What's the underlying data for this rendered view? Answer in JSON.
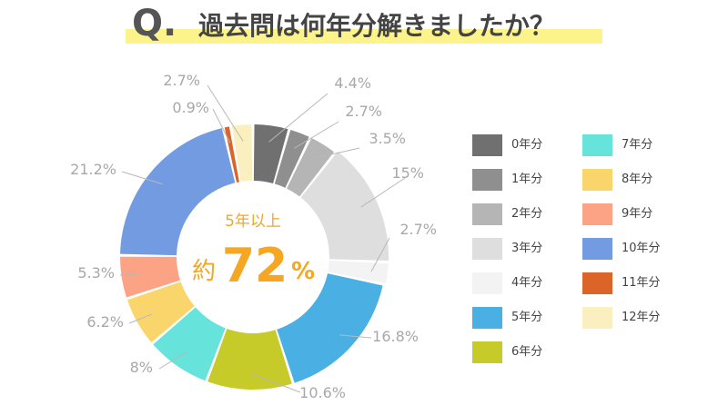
{
  "title": {
    "q_mark": "Q.",
    "text": "過去問は何年分解きましたか？"
  },
  "center": {
    "subtitle": "5年以上",
    "prefix": "約",
    "value": "72",
    "unit": "%"
  },
  "colors": {
    "highlight": "#fcf38a",
    "center_text": "#f5a623",
    "label_text": "#a8a8a8",
    "leader_line": "#b8b8b8"
  },
  "chart_data": {
    "type": "pie",
    "subtype": "donut",
    "unit": "%",
    "series": [
      {
        "name": "0年分",
        "value": 4.4,
        "label": "4.4%",
        "color": "#707070"
      },
      {
        "name": "1年分",
        "value": 2.7,
        "label": "2.7%",
        "color": "#8f8f8f"
      },
      {
        "name": "2年分",
        "value": 3.5,
        "label": "3.5%",
        "color": "#b5b5b5"
      },
      {
        "name": "3年分",
        "value": 15,
        "label": "15%",
        "color": "#dedede"
      },
      {
        "name": "4年分",
        "value": 2.7,
        "label": "2.7%",
        "color": "#f3f3f3"
      },
      {
        "name": "5年分",
        "value": 16.8,
        "label": "16.8%",
        "color": "#4ab0e4"
      },
      {
        "name": "6年分",
        "value": 10.6,
        "label": "10.6%",
        "color": "#c6cb2a"
      },
      {
        "name": "7年分",
        "value": 8,
        "label": "8%",
        "color": "#66e3da"
      },
      {
        "name": "8年分",
        "value": 6.2,
        "label": "6.2%",
        "color": "#fad56c"
      },
      {
        "name": "9年分",
        "value": 5.3,
        "label": "5.3%",
        "color": "#fca285"
      },
      {
        "name": "10年分",
        "value": 21.2,
        "label": "21.2%",
        "color": "#729be2"
      },
      {
        "name": "11年分",
        "value": 0.9,
        "label": "0.9%",
        "color": "#dc6428"
      },
      {
        "name": "12年分",
        "value": 2.7,
        "label": "2.7%",
        "color": "#faf0bf"
      }
    ],
    "legend_placement": "right"
  }
}
